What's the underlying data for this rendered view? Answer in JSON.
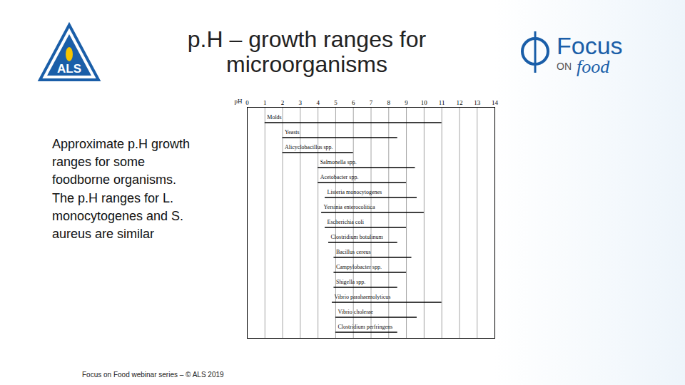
{
  "title": "p.H – growth ranges for microorganisms",
  "side_text": "Approximate p.H growth ranges for some foodborne organisms. The p.H ranges for L. monocytogenes and S. aureus are similar",
  "footer": "Focus on Food webinar series – © ALS 2019",
  "logos": {
    "left": "ALS",
    "right": [
      "Focus",
      "ON",
      "food"
    ]
  },
  "chart_data": {
    "type": "bar",
    "orientation": "horizontal",
    "xlabel": "pH",
    "categories": [
      "Molds",
      "Yeasts",
      "Alicyclobacillus spp.",
      "Salmonella spp.",
      "Acetobacter spp.",
      "Listeria monocytogenes",
      "Yersinia enterocolitica",
      "Escherichia coli",
      "Clostridium botulinum",
      "Bacillus cereus",
      "Campylobacter spp.",
      "Shigella spp.",
      "Vibrio parahaemolyticus",
      "Vibrio cholerae",
      "Clostridium perfringens"
    ],
    "low": [
      1.0,
      2.0,
      2.0,
      4.0,
      4.0,
      4.4,
      4.2,
      4.4,
      4.6,
      4.9,
      4.9,
      4.9,
      4.8,
      5.0,
      5.0
    ],
    "high": [
      11.0,
      8.5,
      6.0,
      9.5,
      9.0,
      9.6,
      10.0,
      9.0,
      8.5,
      9.3,
      9.0,
      8.5,
      11.0,
      9.6,
      8.5
    ],
    "xlim": [
      0,
      14
    ],
    "xticks": [
      0,
      1,
      2,
      3,
      4,
      5,
      6,
      7,
      8,
      9,
      10,
      11,
      12,
      13,
      14
    ],
    "grid": true,
    "color": "#000000",
    "tick_labels": "x"
  }
}
